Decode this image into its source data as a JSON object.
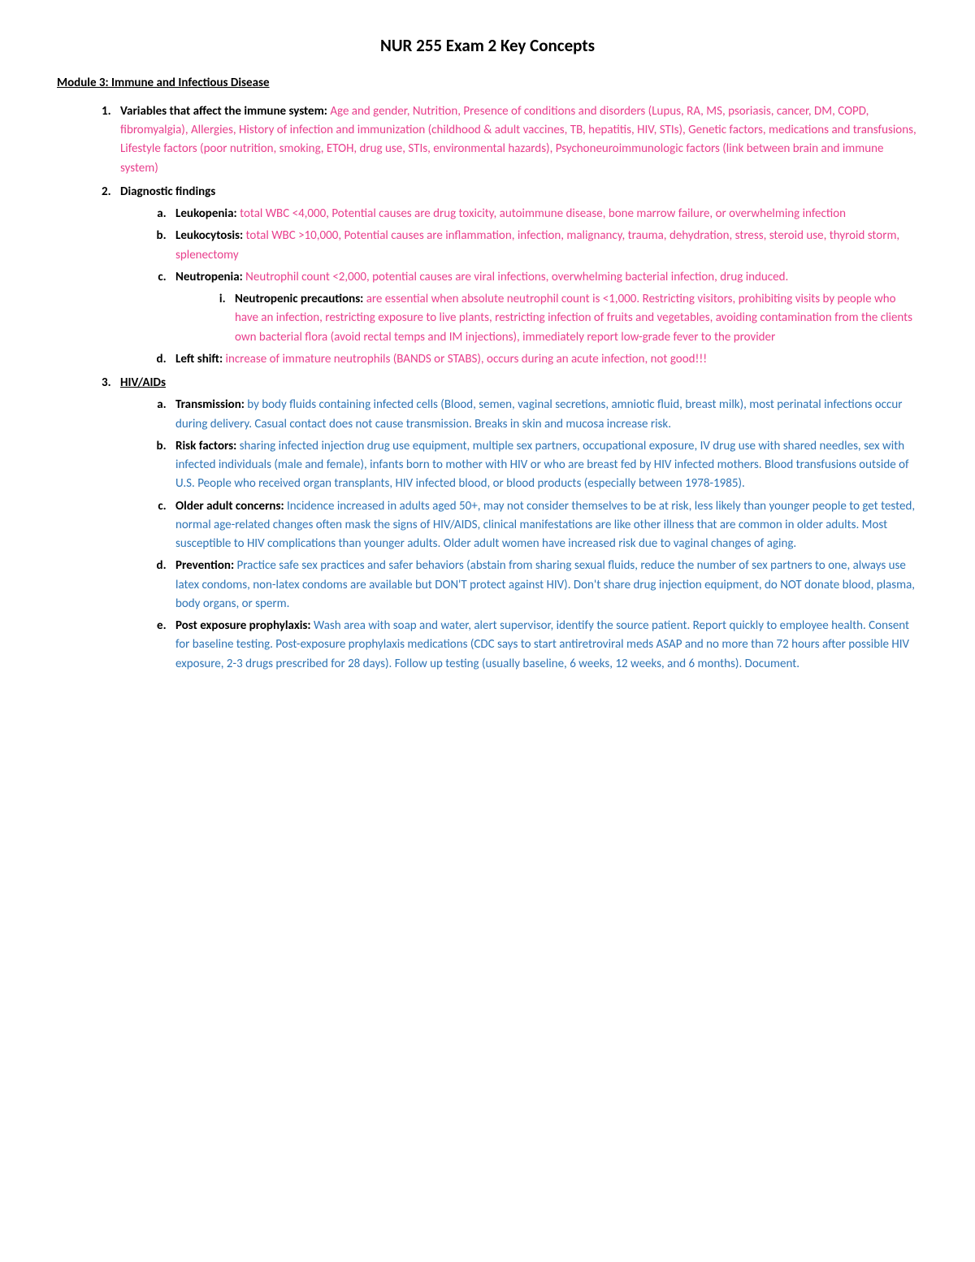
{
  "title": "NUR 255 Exam 2 Key Concepts",
  "module": "Module 3: Immune and Infectious Disease",
  "colors": {
    "pink": "#e83e8c",
    "blue": "#2e74b5",
    "black": "#000000",
    "background": "#ffffff"
  },
  "items": {
    "i1": {
      "lead": "Variables that affect the immune system: ",
      "body": "Age and gender, Nutrition, Presence of conditions and disorders (Lupus, RA, MS, psoriasis, cancer, DM, COPD, fibromyalgia), Allergies, History of infection and immunization (childhood & adult vaccines, TB, hepatitis, HIV, STIs), Genetic factors, medications and transfusions, Lifestyle factors (poor nutrition, smoking, ETOH, drug use, STIs, environmental hazards), Psychoneuroimmunologic factors (link between brain and immune system)"
    },
    "i2": {
      "lead": "Diagnostic findings",
      "a": {
        "lead": "Leukopenia: ",
        "body": "total WBC <4,000, Potential causes are drug toxicity, autoimmune disease, bone marrow failure, or overwhelming infection"
      },
      "b": {
        "lead": "Leukocytosis: ",
        "body": "total WBC >10,000, Potential causes are inflammation, infection, malignancy, trauma, dehydration, stress, steroid use, thyroid storm, splenectomy"
      },
      "c": {
        "lead": "Neutropenia: ",
        "body": "Neutrophil count <2,000, potential causes are viral infections, overwhelming bacterial infection,  drug induced.",
        "i": {
          "lead": "Neutropenic precautions: ",
          "body": "are essential when absolute neutrophil count is <1,000. Restricting visitors, prohibiting visits by people who have an infection, restricting exposure to live plants, restricting infection of fruits and vegetables, avoiding contamination from the clients own bacterial flora (avoid rectal temps and IM injections), immediately report low-grade fever to the provider"
        }
      },
      "d": {
        "lead": "Left shift: ",
        "body": "increase of immature neutrophils (BANDS or STABS), occurs during an acute infection, not good!!!"
      }
    },
    "i3": {
      "lead": "HIV/AIDs",
      "a": {
        "lead": "Transmission: ",
        "body": "by body fluids containing infected cells (Blood, semen, vaginal secretions, amniotic fluid, breast milk), most perinatal infections occur during delivery. Casual contact does not cause transmission. Breaks in skin and mucosa increase risk."
      },
      "b": {
        "lead": "Risk factors: ",
        "body": "sharing infected injection drug use equipment, multiple sex partners, occupational exposure, IV drug use with shared needles, sex with infected individuals (male and female), infants born to mother with HIV or who are breast fed by HIV infected mothers. Blood transfusions outside of U.S. People who received organ transplants, HIV infected blood, or blood products (especially between 1978-1985)."
      },
      "c": {
        "lead": "Older adult concerns: ",
        "body": "Incidence increased in adults aged 50+, may not consider themselves to be at risk, less likely than younger people to get tested, normal age-related changes often mask the signs of HIV/AIDS, clinical manifestations are like other illness that are common in older adults. Most susceptible to HIV complications than younger adults. Older adult women have increased risk due to vaginal changes of aging."
      },
      "d": {
        "lead": "Prevention: ",
        "body": "Practice safe sex practices and safer behaviors (abstain from sharing sexual fluids, reduce the number of sex partners to one, always use latex condoms, non-latex condoms are available but DON'T protect against HIV). Don't share drug injection equipment, do NOT donate blood, plasma, body organs, or sperm."
      },
      "e": {
        "lead": "Post exposure prophylaxis: ",
        "body": "Wash area with soap and water, alert supervisor, identify the source patient. Report quickly to employee health. Consent for baseline testing. Post-exposure prophylaxis medications (CDC says to start antiretroviral meds ASAP and no more than 72 hours after possible HIV exposure, 2-3 drugs prescribed for 28 days). Follow up testing (usually baseline, 6 weeks, 12 weeks, and 6 months). Document."
      }
    }
  }
}
